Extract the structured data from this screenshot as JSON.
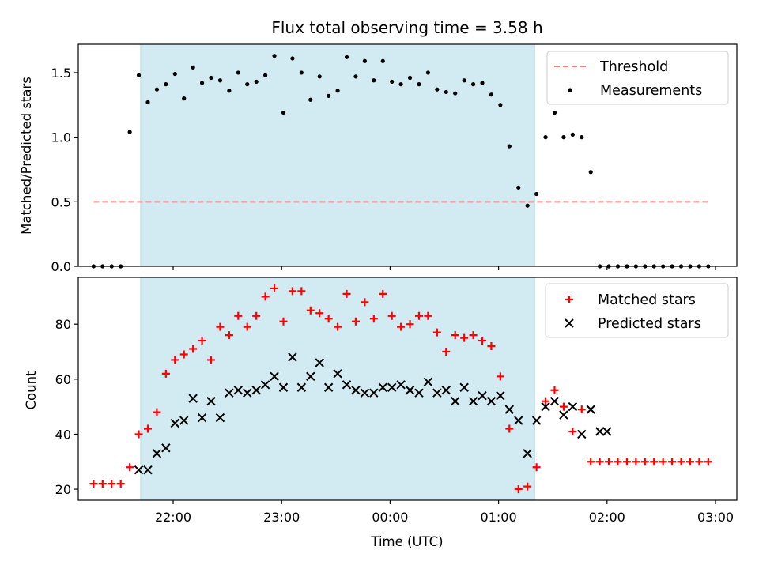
{
  "chart_data": [
    {
      "type": "scatter",
      "title": "Flux total observing time = 3.58 h",
      "xlabel": "",
      "ylabel": "Matched/Predicted stars",
      "ylim": [
        0,
        1.72
      ],
      "xlim": [
        "21:24",
        "03:07"
      ],
      "yticks": [
        0.0,
        0.5,
        1.0,
        1.5
      ],
      "ytick_labels": [
        "0.0",
        "0.5",
        "1.0",
        "1.5"
      ],
      "grid": false,
      "legend_placement": "top-right",
      "shaded_span": [
        "21:42",
        "01:20"
      ],
      "series": [
        {
          "name": "Threshold",
          "kind": "dashed-line",
          "color": "#ff7f7f",
          "x": [
            "21:16",
            "02:56"
          ],
          "y": [
            0.5,
            0.5
          ]
        },
        {
          "name": "Measurements",
          "kind": "dots",
          "color": "#000000",
          "x": [
            "21:16",
            "21:21",
            "21:26",
            "21:31",
            "21:36",
            "21:41",
            "21:46",
            "21:51",
            "21:56",
            "22:01",
            "22:06",
            "22:11",
            "22:16",
            "22:21",
            "22:26",
            "22:31",
            "22:36",
            "22:41",
            "22:46",
            "22:51",
            "22:56",
            "23:01",
            "23:06",
            "23:11",
            "23:16",
            "23:21",
            "23:26",
            "23:31",
            "23:36",
            "23:41",
            "23:46",
            "23:51",
            "23:56",
            "00:01",
            "00:06",
            "00:11",
            "00:16",
            "00:21",
            "00:26",
            "00:31",
            "00:36",
            "00:41",
            "00:46",
            "00:51",
            "00:56",
            "01:01",
            "01:06",
            "01:11",
            "01:16",
            "01:21",
            "01:26",
            "01:31",
            "01:36",
            "01:41",
            "01:46",
            "01:51",
            "01:56",
            "02:01",
            "02:06",
            "02:11",
            "02:16",
            "02:21",
            "02:26",
            "02:31",
            "02:36",
            "02:41",
            "02:46",
            "02:51",
            "02:56"
          ],
          "y": [
            0.0,
            0.0,
            0.0,
            0.0,
            1.04,
            1.48,
            1.27,
            1.37,
            1.41,
            1.49,
            1.3,
            1.54,
            1.42,
            1.46,
            1.44,
            1.36,
            1.5,
            1.41,
            1.43,
            1.48,
            1.63,
            1.19,
            1.61,
            1.5,
            1.29,
            1.47,
            1.32,
            1.36,
            1.62,
            1.47,
            1.59,
            1.44,
            1.59,
            1.43,
            1.41,
            1.46,
            1.41,
            1.5,
            1.37,
            1.35,
            1.34,
            1.44,
            1.41,
            1.42,
            1.33,
            1.25,
            0.93,
            0.61,
            0.47,
            0.56,
            1.0,
            1.19,
            1.0,
            1.02,
            1.0,
            0.73,
            0.0,
            0.0,
            0.0,
            0.0,
            0.0,
            0.0,
            0.0,
            0.0,
            0.0,
            0.0,
            0.0,
            0.0,
            0.0
          ]
        }
      ]
    },
    {
      "type": "scatter",
      "title": "",
      "xlabel": "Time (UTC)",
      "ylabel": "Count",
      "ylim": [
        16,
        97
      ],
      "xlim": [
        "21:24",
        "03:07"
      ],
      "yticks": [
        20,
        40,
        60,
        80
      ],
      "ytick_labels": [
        "20",
        "40",
        "60",
        "80"
      ],
      "xticks": [
        "22:00",
        "23:00",
        "00:00",
        "01:00",
        "02:00",
        "03:00"
      ],
      "grid": false,
      "legend_placement": "top-right",
      "shaded_span": [
        "21:42",
        "01:20"
      ],
      "series": [
        {
          "name": "Matched stars",
          "marker": "+",
          "color": "#ff0000",
          "x": [
            "21:16",
            "21:21",
            "21:26",
            "21:31",
            "21:36",
            "21:41",
            "21:46",
            "21:51",
            "21:56",
            "22:01",
            "22:06",
            "22:11",
            "22:16",
            "22:21",
            "22:26",
            "22:31",
            "22:36",
            "22:41",
            "22:46",
            "22:51",
            "22:56",
            "23:01",
            "23:06",
            "23:11",
            "23:16",
            "23:21",
            "23:26",
            "23:31",
            "23:36",
            "23:41",
            "23:46",
            "23:51",
            "23:56",
            "00:01",
            "00:06",
            "00:11",
            "00:16",
            "00:21",
            "00:26",
            "00:31",
            "00:36",
            "00:41",
            "00:46",
            "00:51",
            "00:56",
            "01:01",
            "01:06",
            "01:11",
            "01:16",
            "01:21",
            "01:26",
            "01:31",
            "01:36",
            "01:41",
            "01:46",
            "01:51",
            "01:56",
            "02:01",
            "02:06",
            "02:11",
            "02:16",
            "02:21",
            "02:26",
            "02:31",
            "02:36",
            "02:41",
            "02:46",
            "02:51",
            "02:56"
          ],
          "y": [
            22,
            22,
            22,
            22,
            28,
            40,
            42,
            48,
            62,
            67,
            69,
            71,
            74,
            67,
            79,
            76,
            83,
            79,
            83,
            90,
            93,
            81,
            92,
            92,
            85,
            84,
            82,
            79,
            91,
            81,
            88,
            82,
            91,
            83,
            79,
            80,
            83,
            83,
            77,
            70,
            76,
            75,
            76,
            74,
            72,
            61,
            42,
            20,
            21,
            28,
            52,
            56,
            50,
            41,
            49,
            30,
            30,
            30,
            30,
            30,
            30,
            30,
            30,
            30,
            30,
            30,
            30,
            30,
            30
          ]
        },
        {
          "name": "Predicted stars",
          "marker": "x",
          "color": "#000000",
          "x": [
            "21:41",
            "21:46",
            "21:51",
            "21:56",
            "22:01",
            "22:06",
            "22:11",
            "22:16",
            "22:21",
            "22:26",
            "22:31",
            "22:36",
            "22:41",
            "22:46",
            "22:51",
            "22:56",
            "23:01",
            "23:06",
            "23:11",
            "23:16",
            "23:21",
            "23:26",
            "23:31",
            "23:36",
            "23:41",
            "23:46",
            "23:51",
            "23:56",
            "00:01",
            "00:06",
            "00:11",
            "00:16",
            "00:21",
            "00:26",
            "00:31",
            "00:36",
            "00:41",
            "00:46",
            "00:51",
            "00:56",
            "01:01",
            "01:06",
            "01:11",
            "01:16",
            "01:21",
            "01:26",
            "01:31",
            "01:36",
            "01:41",
            "01:46",
            "01:51",
            "01:56",
            "02:01"
          ],
          "y": [
            27,
            27,
            33,
            35,
            44,
            45,
            53,
            46,
            52,
            46,
            55,
            56,
            55,
            56,
            58,
            61,
            57,
            68,
            57,
            61,
            66,
            57,
            62,
            58,
            56,
            55,
            55,
            57,
            57,
            58,
            56,
            55,
            59,
            55,
            56,
            52,
            57,
            52,
            54,
            52,
            54,
            49,
            45,
            33,
            45,
            50,
            52,
            47,
            50,
            40,
            49,
            41,
            null
          ]
        }
      ]
    }
  ],
  "figure": {
    "title": "Flux total observing time = 3.58 h",
    "shade_color": "#add8e6",
    "threshold_color": "#ff7f7f",
    "matched_color": "#ff0000",
    "predicted_color": "#000000"
  }
}
